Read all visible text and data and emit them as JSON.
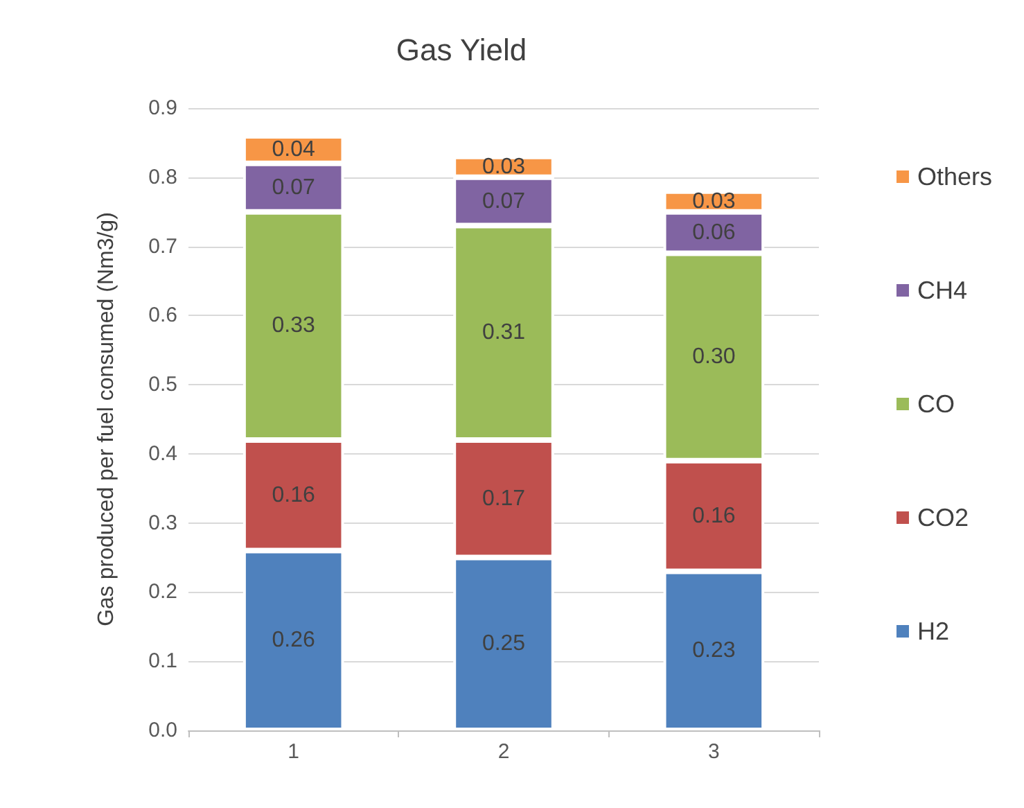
{
  "chart_data": {
    "type": "bar",
    "title": "Gas Yield",
    "ylabel": "Gas produced per fuel consumed (Nm3/g)",
    "categories": [
      "1",
      "2",
      "3"
    ],
    "stacked": true,
    "legend": "right",
    "grid": "y",
    "ylim": [
      0,
      0.9
    ],
    "yticks": [
      {
        "value": 0,
        "label": "0.0"
      },
      0.1,
      0.2,
      0.3,
      0.4,
      0.5,
      0.6,
      0.7,
      0.8,
      0.9
    ],
    "series": [
      {
        "name": "H2",
        "color": "#4f81bd",
        "values": [
          0.26,
          0.25,
          0.23
        ],
        "value_labels": [
          "0.26",
          "0.25",
          "0.23"
        ]
      },
      {
        "name": "CO2",
        "color": "#c0504d",
        "values": [
          0.16,
          0.17,
          0.16
        ],
        "value_labels": [
          "0.16",
          "0.17",
          "0.16"
        ]
      },
      {
        "name": "CO",
        "color": "#9bbb59",
        "values": [
          0.33,
          0.31,
          0.3
        ],
        "value_labels": [
          "0.33",
          "0.31",
          "0.30"
        ]
      },
      {
        "name": "CH4",
        "color": "#8064a2",
        "values": [
          0.07,
          0.07,
          0.06
        ],
        "value_labels": [
          "0.07",
          "0.07",
          "0.06"
        ]
      },
      {
        "name": "Others",
        "color": "#f79646",
        "values": [
          0.04,
          0.03,
          0.03
        ],
        "value_labels": [
          "0.04",
          "0.03",
          "0.03"
        ]
      }
    ]
  }
}
